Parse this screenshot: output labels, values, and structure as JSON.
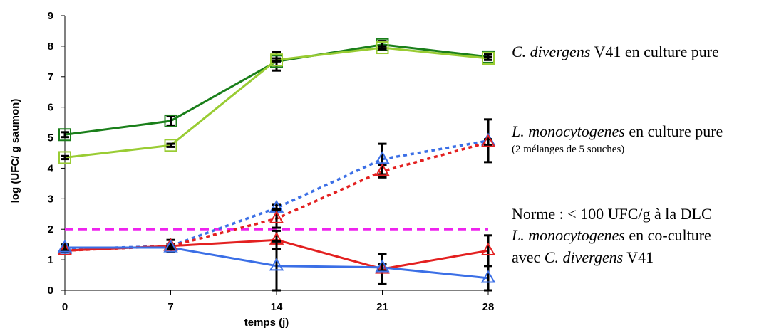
{
  "chart_data": {
    "type": "line",
    "xlabel": "temps (j)",
    "ylabel": "log (UFC/ g saumon)",
    "x": [
      0,
      7,
      14,
      21,
      28
    ],
    "xticks": [
      "0",
      "7",
      "14",
      "21",
      "28"
    ],
    "ylim": [
      0,
      9
    ],
    "yticks": [
      "0",
      "1",
      "2",
      "3",
      "4",
      "5",
      "6",
      "7",
      "8",
      "9"
    ],
    "grid": false,
    "series": [
      {
        "color": "#1a7f1a",
        "style": "solid",
        "marker": "square",
        "values": [
          5.1,
          5.55,
          7.5,
          8.05,
          7.65
        ],
        "errors": [
          0.08,
          0.15,
          0.3,
          0.12,
          0.1
        ]
      },
      {
        "color": "#99cc33",
        "style": "solid",
        "marker": "square",
        "values": [
          4.35,
          4.75,
          7.55,
          7.95,
          7.6
        ],
        "errors": [
          0.05,
          0.05,
          0.05,
          0.05,
          0.05
        ]
      },
      {
        "color": "#3b6fe6",
        "style": "dotted",
        "marker": "triangle",
        "values": [
          1.35,
          1.45,
          2.7,
          4.3,
          4.9
        ],
        "errors": [
          0.1,
          0.05,
          0.1,
          0.5,
          0.7
        ]
      },
      {
        "color": "#e32020",
        "style": "dotted",
        "marker": "triangle",
        "values": [
          1.3,
          1.45,
          2.35,
          3.9,
          4.85
        ],
        "errors": [
          0.05,
          0.05,
          0.3,
          0.2,
          0.1
        ]
      },
      {
        "color": "#e32020",
        "style": "solid",
        "marker": "triangle",
        "values": [
          1.3,
          1.45,
          1.65,
          0.7,
          1.3
        ],
        "errors": [
          0.05,
          0.2,
          0.3,
          0.5,
          0.5
        ]
      },
      {
        "color": "#3b6fe6",
        "style": "solid",
        "marker": "triangle",
        "values": [
          1.4,
          1.4,
          0.8,
          0.75,
          0.4
        ],
        "errors": [
          0.1,
          0.05,
          0.8,
          0.1,
          0.4
        ]
      }
    ],
    "threshold": {
      "value": 2.0,
      "color": "#ee22ee",
      "style": "dashed"
    },
    "annotations": {
      "cd_pure_italic": "C. divergens",
      "cd_pure_rest": " V41 en culture pure",
      "lm_pure_italic": "L. monocytogenes",
      "lm_pure_rest": " en culture pure",
      "lm_pure_sub": "(2 mélanges de 5 souches)",
      "norme": "Norme : < 100 UFC/g  à la DLC",
      "lm_co_italic": "L. monocytogenes",
      "lm_co_rest": " en co-culture",
      "avec_prefix": "avec ",
      "avec_italic": "C. divergens",
      "avec_rest": " V41"
    }
  }
}
